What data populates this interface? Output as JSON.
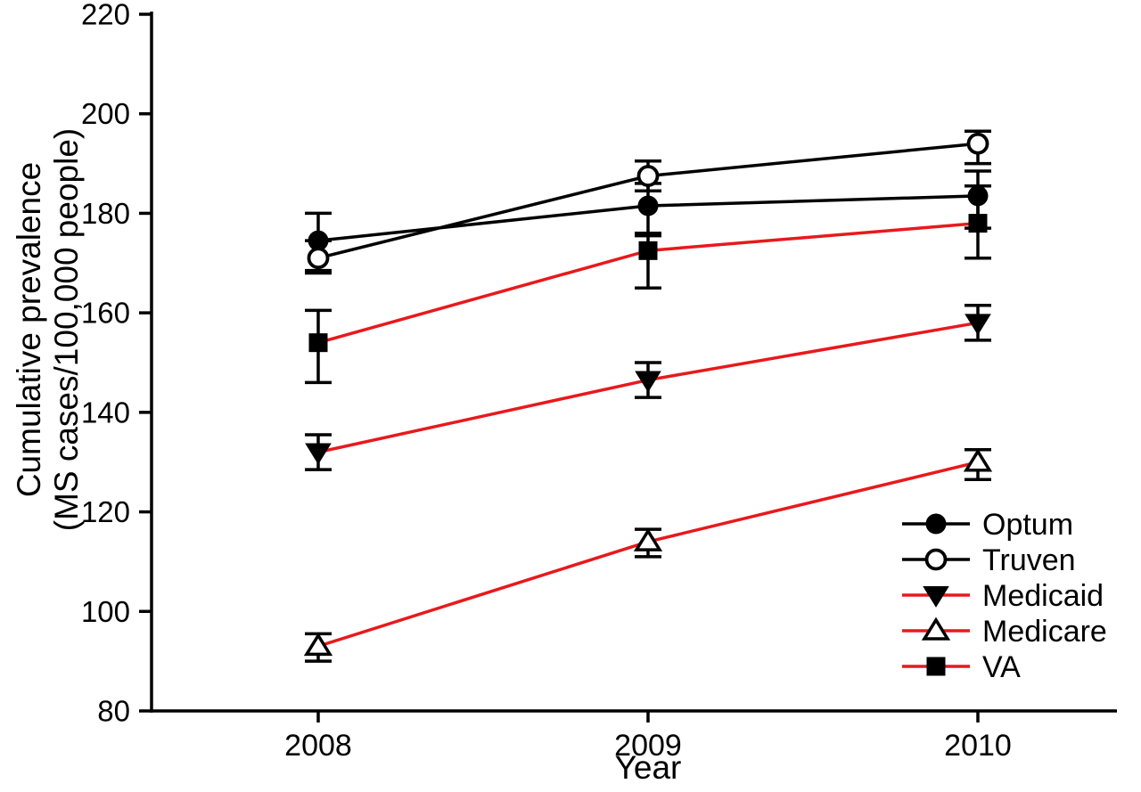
{
  "chart_data": {
    "type": "line",
    "title": "",
    "xlabel": "Year",
    "ylabel": "Cumulative prevalence (MS cases/100,000 people)",
    "ylabel_lines": [
      "Cumulative prevalence",
      "(MS cases/100,000 people)"
    ],
    "x_categories": [
      "2008",
      "2009",
      "2010"
    ],
    "y_ticks": [
      80,
      100,
      120,
      140,
      160,
      180,
      200,
      220
    ],
    "ylim": [
      80,
      220
    ],
    "grid": false,
    "legend_position": "inside-bottom-right",
    "error_bars": "black vertical bars with caps (95% CI)",
    "colors": {
      "black": "#000000",
      "red": "#e8191c",
      "background": "#ffffff"
    },
    "series": [
      {
        "name": "Optum",
        "line_color": "#000000",
        "marker": "circle-filled",
        "marker_color": "#000000",
        "values": [
          174.5,
          181.5,
          183.5
        ],
        "ci_low": [
          168.5,
          175.5,
          177.0
        ],
        "ci_high": [
          180.0,
          186.0,
          188.5
        ]
      },
      {
        "name": "Truven",
        "line_color": "#000000",
        "marker": "circle-open",
        "marker_color": "#000000",
        "values": [
          171.0,
          187.5,
          194.0
        ],
        "ci_low": [
          168.0,
          184.5,
          190.0
        ],
        "ci_high": [
          174.5,
          190.5,
          196.5
        ]
      },
      {
        "name": "Medicaid",
        "line_color": "#e8191c",
        "marker": "triangle-down-filled",
        "marker_color": "#000000",
        "values": [
          132.0,
          146.5,
          158.0
        ],
        "ci_low": [
          128.5,
          143.0,
          154.5
        ],
        "ci_high": [
          135.5,
          150.0,
          161.5
        ]
      },
      {
        "name": "Medicare",
        "line_color": "#e8191c",
        "marker": "triangle-up-open",
        "marker_color": "#000000",
        "values": [
          93.0,
          114.0,
          130.0
        ],
        "ci_low": [
          90.0,
          111.0,
          126.5
        ],
        "ci_high": [
          95.5,
          116.5,
          132.5
        ]
      },
      {
        "name": "VA",
        "line_color": "#e8191c",
        "marker": "square-filled",
        "marker_color": "#000000",
        "values": [
          154.0,
          172.5,
          178.0
        ],
        "ci_low": [
          146.0,
          165.0,
          171.0
        ],
        "ci_high": [
          160.5,
          176.0,
          185.5
        ]
      }
    ]
  }
}
